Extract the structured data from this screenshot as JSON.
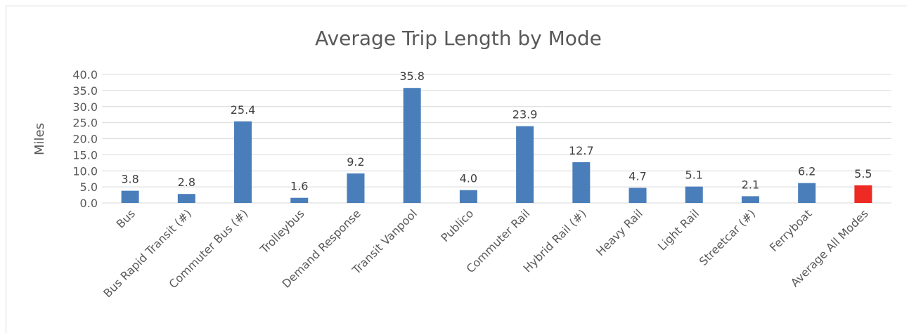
{
  "chart_data": {
    "type": "bar",
    "title": "Average Trip Length by Mode",
    "xlabel": "",
    "ylabel": "Miles",
    "ylim": [
      0,
      40
    ],
    "ytick_step": 5,
    "ytick_labels": [
      "0.0",
      "5.0",
      "10.0",
      "15.0",
      "20.0",
      "25.0",
      "30.0",
      "35.0",
      "40.0"
    ],
    "grid": true,
    "legend": "none",
    "categories": [
      "Bus",
      "Bus Rapid Transit (#)",
      "Commuter Bus (#)",
      "Trolleybus",
      "Demand Response",
      "Transit Vanpool",
      "Publico",
      "Commuter Rail",
      "Hybrid Rail (#)",
      "Heavy Rail",
      "Light Rail",
      "Streetcar (#)",
      "Ferryboat",
      "Average All Modes"
    ],
    "values": [
      3.8,
      2.8,
      25.4,
      1.6,
      9.2,
      35.8,
      4.0,
      23.9,
      12.7,
      4.7,
      5.1,
      2.1,
      6.2,
      5.5
    ],
    "value_labels": [
      "3.8",
      "2.8",
      "25.4",
      "1.6",
      "9.2",
      "35.8",
      "4.0",
      "23.9",
      "12.7",
      "4.7",
      "5.1",
      "2.1",
      "6.2",
      "5.5"
    ],
    "colors": {
      "default_bar": "#4a7ebb",
      "highlight_bar": "#ee2a24",
      "highlight_category": "Average All Modes"
    }
  }
}
